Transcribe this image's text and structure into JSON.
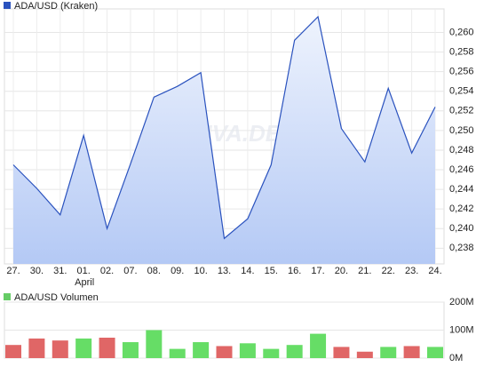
{
  "chart_data": [
    {
      "type": "area",
      "categories": [
        "27.",
        "30.",
        "31.",
        "01.",
        "02.",
        "07.",
        "08.",
        "09.",
        "10.",
        "13.",
        "14.",
        "15.",
        "16.",
        "17.",
        "20.",
        "21.",
        "22.",
        "23.",
        "24."
      ],
      "annotations": [
        {
          "text": "April",
          "at": "01."
        }
      ],
      "watermark": "ARIVA.DE",
      "series": [
        {
          "name": "ADA/USD (Kraken)",
          "color": "#2a52be",
          "values": [
            0.2465,
            0.2441,
            0.2414,
            0.2495,
            0.24,
            0.2466,
            0.2534,
            0.2545,
            0.2559,
            0.239,
            0.241,
            0.2465,
            0.2592,
            0.2616,
            0.2502,
            0.2468,
            0.2543,
            0.2477,
            0.2524
          ]
        }
      ],
      "ylim": [
        0.2364,
        0.2624
      ],
      "yticks": [
        {
          "value": 0.238,
          "label": "0,238"
        },
        {
          "value": 0.24,
          "label": "0,240"
        },
        {
          "value": 0.242,
          "label": "0,242"
        },
        {
          "value": 0.244,
          "label": "0,244"
        },
        {
          "value": 0.246,
          "label": "0,246"
        },
        {
          "value": 0.248,
          "label": "0,248"
        },
        {
          "value": 0.25,
          "label": "0,250"
        },
        {
          "value": 0.252,
          "label": "0,252"
        },
        {
          "value": 0.254,
          "label": "0,254"
        },
        {
          "value": 0.256,
          "label": "0,256"
        },
        {
          "value": 0.258,
          "label": "0,258"
        },
        {
          "value": 0.26,
          "label": "0,260"
        }
      ],
      "grid": true
    },
    {
      "type": "bar",
      "series": [
        {
          "name": "ADA/USD Volumen",
          "color": "#66cc66",
          "colors": [
            "#e06666",
            "#e06666",
            "#e06666",
            "#66dd66",
            "#e06666",
            "#66dd66",
            "#66dd66",
            "#66dd66",
            "#66dd66",
            "#e06666",
            "#66dd66",
            "#66dd66",
            "#66dd66",
            "#66dd66",
            "#e06666",
            "#e06666",
            "#66dd66",
            "#e06666",
            "#66dd66"
          ],
          "values": [
            47,
            70,
            63,
            70,
            73,
            57,
            100,
            33,
            57,
            43,
            53,
            33,
            47,
            87,
            40,
            23,
            40,
            43,
            40
          ]
        }
      ],
      "ylim": [
        0,
        200
      ],
      "yticks": [
        {
          "value": 0,
          "label": "0M"
        },
        {
          "value": 100,
          "label": "100M"
        },
        {
          "value": 200,
          "label": "200M"
        }
      ],
      "grid": true
    }
  ]
}
